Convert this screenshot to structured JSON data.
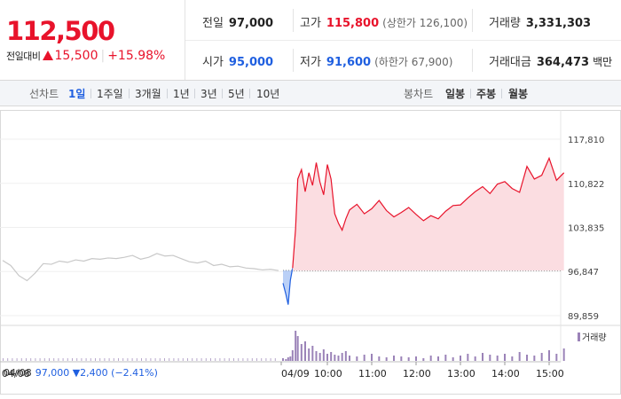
{
  "quote": {
    "price": "112,500",
    "change_label": "전일대비",
    "change_value": "15,500",
    "change_pct": "+15.98%"
  },
  "stats": {
    "prev_close": {
      "label": "전일",
      "value": "97,000"
    },
    "high": {
      "label": "고가",
      "value": "115,800",
      "sub": "(상한가 126,100)"
    },
    "volume": {
      "label": "거래량",
      "value": "3,331,303"
    },
    "open": {
      "label": "시가",
      "value": "95,000"
    },
    "low": {
      "label": "저가",
      "value": "91,600",
      "sub": "(하한가 67,900)"
    },
    "turnover": {
      "label": "거래대금",
      "value": "364,473",
      "unit": "백만"
    }
  },
  "tabs": {
    "line_header": "선차트",
    "line_items": [
      "1일",
      "1주일",
      "3개월",
      "1년",
      "3년",
      "5년",
      "10년"
    ],
    "selected": "1일",
    "candle_header": "봉차트",
    "candle_items": [
      "일봉",
      "주봉",
      "월봉"
    ]
  },
  "colors": {
    "up": "#e8132b",
    "down": "#1f5fe0",
    "volume": "#9b83b8",
    "prev_line": "#c8c8c8"
  },
  "chart_data": {
    "type": "line",
    "y_ticks": [
      "117,810",
      "110,822",
      "103,835",
      "96,847",
      "89,859"
    ],
    "ylim": [
      89859,
      117810
    ],
    "reference_price": 97000,
    "x_ticks": [
      "04/08",
      "04/09",
      "10:00",
      "11:00",
      "12:00",
      "13:00",
      "14:00",
      "15:00"
    ],
    "prev_day_series": {
      "date": "04/08",
      "values": [
        98600,
        97800,
        96200,
        95400,
        96600,
        98100,
        98000,
        98500,
        98300,
        98700,
        98500,
        98900,
        98800,
        99000,
        98900,
        99100,
        99400,
        98800,
        99100,
        99700,
        99300,
        99400,
        98900,
        98400,
        98200,
        98500,
        97800,
        98000,
        97600,
        97700,
        97400,
        97300,
        97100,
        97200,
        97000
      ]
    },
    "today_series": {
      "date": "04/09",
      "times": [
        "09:00",
        "09:04",
        "09:07",
        "09:10",
        "09:13",
        "09:17",
        "09:20",
        "09:25",
        "09:30",
        "09:35",
        "09:40",
        "09:45",
        "09:50",
        "09:55",
        "10:00",
        "10:05",
        "10:10",
        "10:15",
        "10:20",
        "10:25",
        "10:30",
        "10:40",
        "10:50",
        "11:00",
        "11:10",
        "11:20",
        "11:30",
        "11:40",
        "11:50",
        "12:00",
        "12:10",
        "12:20",
        "12:30",
        "12:40",
        "12:50",
        "13:00",
        "13:10",
        "13:20",
        "13:30",
        "13:40",
        "13:50",
        "14:00",
        "14:10",
        "14:20",
        "14:30",
        "14:40",
        "14:50",
        "15:00",
        "15:10",
        "15:20"
      ],
      "values": [
        95000,
        93200,
        91600,
        95500,
        97400,
        103600,
        111500,
        113000,
        109500,
        112500,
        110500,
        114100,
        111000,
        109000,
        113800,
        111500,
        106000,
        104500,
        103400,
        105200,
        106600,
        107500,
        106000,
        106800,
        108100,
        106500,
        105500,
        106200,
        107000,
        105900,
        104900,
        105700,
        105200,
        106400,
        107300,
        107400,
        108500,
        109500,
        110300,
        109200,
        110700,
        111100,
        110000,
        109400,
        113500,
        111500,
        112100,
        114800,
        111300,
        112500
      ]
    },
    "volume_label": "거래량",
    "volume": [
      3,
      2,
      4,
      5,
      12,
      34,
      28,
      19,
      22,
      14,
      17,
      11,
      9,
      13,
      8,
      10,
      7,
      6,
      9,
      11,
      6,
      5,
      7,
      8,
      5,
      4,
      6,
      5,
      4,
      5,
      3,
      6,
      5,
      7,
      4,
      6,
      8,
      5,
      9,
      7,
      6,
      8,
      5,
      10,
      7,
      6,
      9,
      12,
      8,
      14
    ]
  },
  "bottom": {
    "prev_date": "04/08",
    "prev_close": "97,000",
    "prev_change": "2,400",
    "prev_pct": "(−2.41%)"
  }
}
